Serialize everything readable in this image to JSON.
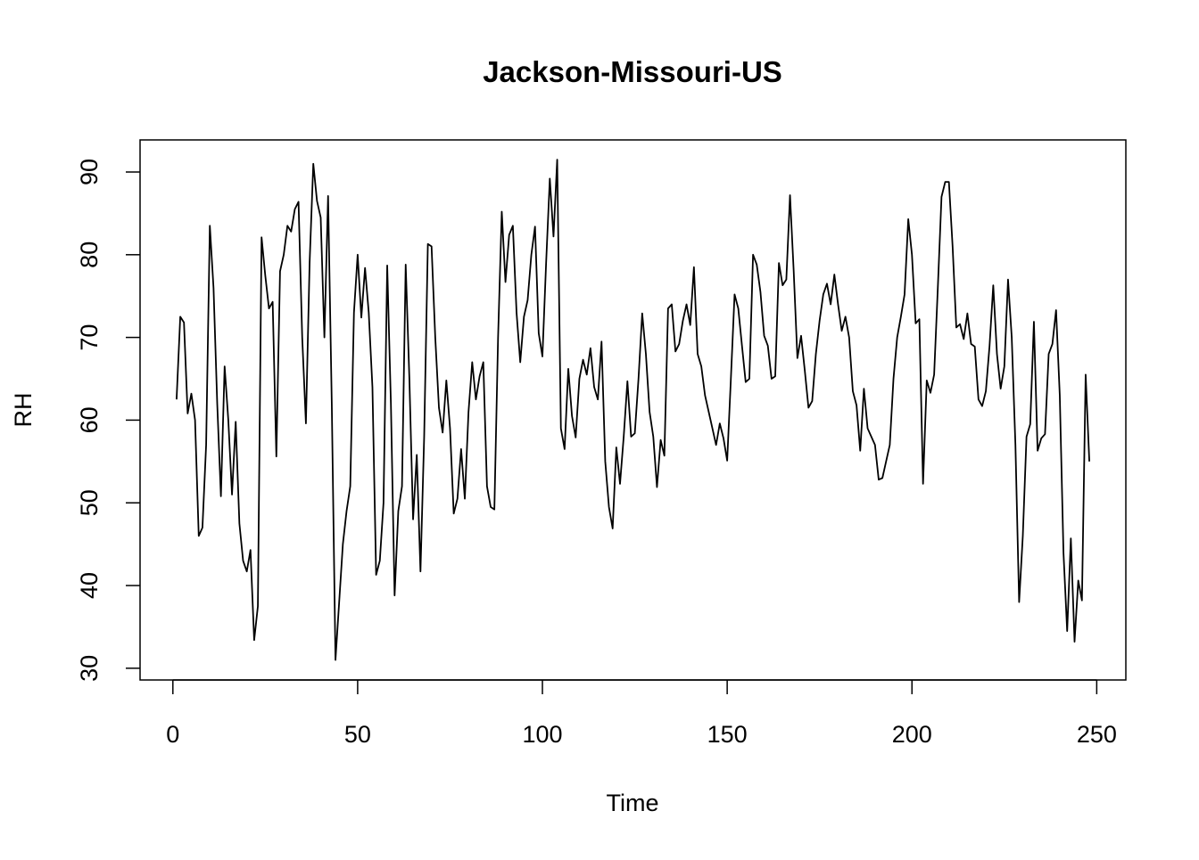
{
  "chart_data": {
    "type": "line",
    "title": "Jackson-Missouri-US",
    "x_label": "Time",
    "y_label": "RH",
    "x": [
      1,
      2,
      3,
      4,
      5,
      6,
      7,
      8,
      9,
      10,
      11,
      12,
      13,
      14,
      15,
      16,
      17,
      18,
      19,
      20,
      21,
      22,
      23,
      24,
      25,
      26,
      27,
      28,
      29,
      30,
      31,
      32,
      33,
      34,
      35,
      36,
      37,
      38,
      39,
      40,
      41,
      42,
      43,
      44,
      45,
      46,
      47,
      48,
      49,
      50,
      51,
      52,
      53,
      54,
      55,
      56,
      57,
      58,
      59,
      60,
      61,
      62,
      63,
      64,
      65,
      66,
      67,
      68,
      69,
      70,
      71,
      72,
      73,
      74,
      75,
      76,
      77,
      78,
      79,
      80,
      81,
      82,
      83,
      84,
      85,
      86,
      87,
      88,
      89,
      90,
      91,
      92,
      93,
      94,
      95,
      96,
      97,
      98,
      99,
      100,
      101,
      102,
      103,
      104,
      105,
      106,
      107,
      108,
      109,
      110,
      111,
      112,
      113,
      114,
      115,
      116,
      117,
      118,
      119,
      120,
      121,
      122,
      123,
      124,
      125,
      126,
      127,
      128,
      129,
      130,
      131,
      132,
      133,
      134,
      135,
      136,
      137,
      138,
      139,
      140,
      141,
      142,
      143,
      144,
      145,
      146,
      147,
      148,
      149,
      150,
      151,
      152,
      153,
      154,
      155,
      156,
      157,
      158,
      159,
      160,
      161,
      162,
      163,
      164,
      165,
      166,
      167,
      168,
      169,
      170,
      171,
      172,
      173,
      174,
      175,
      176,
      177,
      178,
      179,
      180,
      181,
      182,
      183,
      184,
      185,
      186,
      187,
      188,
      189,
      190,
      191,
      192,
      193,
      194,
      195,
      196,
      197,
      198,
      199,
      200,
      201,
      202,
      203,
      204,
      205,
      206,
      207,
      208,
      209,
      210,
      211,
      212,
      213,
      214,
      215,
      216,
      217,
      218,
      219,
      220,
      221,
      222,
      223,
      224,
      225,
      226,
      227,
      228,
      229,
      230,
      231,
      232,
      233,
      234,
      235,
      236,
      237,
      238,
      239,
      240,
      241,
      242,
      243,
      244,
      245,
      246,
      247,
      248
    ],
    "values": [
      62.5,
      72.5,
      71.8,
      60.8,
      63.2,
      60,
      46,
      47,
      57,
      83.5,
      76,
      62,
      50.8,
      66.5,
      60,
      51,
      59.8,
      47.5,
      43,
      41.7,
      44.3,
      33.4,
      37.5,
      82.1,
      77.5,
      73.5,
      74.3,
      55.6,
      78,
      80,
      83.5,
      82.8,
      85.5,
      86.4,
      70,
      59.6,
      79,
      91,
      86.5,
      84.5,
      70,
      87.1,
      62,
      31,
      38,
      45,
      49,
      52,
      73,
      80,
      72.4,
      78.4,
      73,
      64,
      41.3,
      43,
      50,
      78.7,
      62,
      38.8,
      49,
      52,
      78.8,
      65,
      48,
      55.8,
      41.7,
      58,
      81.3,
      81,
      70,
      61.5,
      58.5,
      64.8,
      59,
      48.7,
      50.5,
      56.5,
      50.5,
      61,
      67,
      62.5,
      65.3,
      67,
      52,
      49.5,
      49.2,
      70,
      85.2,
      76.7,
      82.4,
      83.5,
      73,
      67,
      72.5,
      74.5,
      80,
      83.4,
      70.5,
      67.7,
      79,
      89.2,
      82.2,
      91.5,
      59,
      56.5,
      66.2,
      60.5,
      57.9,
      65,
      67.3,
      65.5,
      68.7,
      64,
      62.5,
      69.5,
      55,
      49.5,
      46.9,
      56.7,
      52.3,
      58,
      64.7,
      58,
      58.4,
      65,
      72.9,
      68,
      61,
      58,
      51.9,
      57.6,
      55.7,
      73.5,
      74,
      68.3,
      69.2,
      72,
      74,
      71.5,
      78.5,
      68,
      66.5,
      63,
      61,
      59,
      57,
      59.6,
      57.8,
      55.1,
      65,
      75.2,
      73.5,
      69,
      64.6,
      65,
      80,
      78.8,
      75.5,
      70.2,
      69,
      65,
      65.3,
      79,
      76.3,
      77,
      87.2,
      78,
      67.5,
      70.2,
      66,
      61.5,
      62.3,
      68,
      72,
      75.2,
      76.5,
      74,
      77.6,
      74,
      70.8,
      72.5,
      70,
      63.5,
      61.8,
      56.3,
      63.8,
      59,
      58,
      57,
      52.8,
      53,
      55,
      57,
      65,
      70,
      72.5,
      75.2,
      84.3,
      80,
      71.7,
      72.2,
      52.3,
      64.8,
      63.3,
      65.5,
      76,
      87,
      88.8,
      88.8,
      81,
      71.2,
      71.6,
      69.8,
      72.9,
      69.2,
      68.9,
      62.5,
      61.7,
      63.5,
      69,
      76.3,
      68,
      63.8,
      66.5,
      77,
      70,
      57,
      38,
      46,
      58,
      59.5,
      71.9,
      56.3,
      57.8,
      58.3,
      68,
      69.2,
      73.3,
      63,
      44,
      34.5,
      45.7,
      33.2,
      40.6,
      38.2,
      65.5,
      55
    ],
    "color": "#000000",
    "xlim": [
      -8.88,
      257.88
    ],
    "xticks": [
      0,
      50,
      100,
      150,
      200,
      250
    ],
    "ylim": [
      28.58,
      93.88
    ],
    "yticks": [
      30,
      40,
      50,
      60,
      70,
      80,
      90
    ]
  }
}
